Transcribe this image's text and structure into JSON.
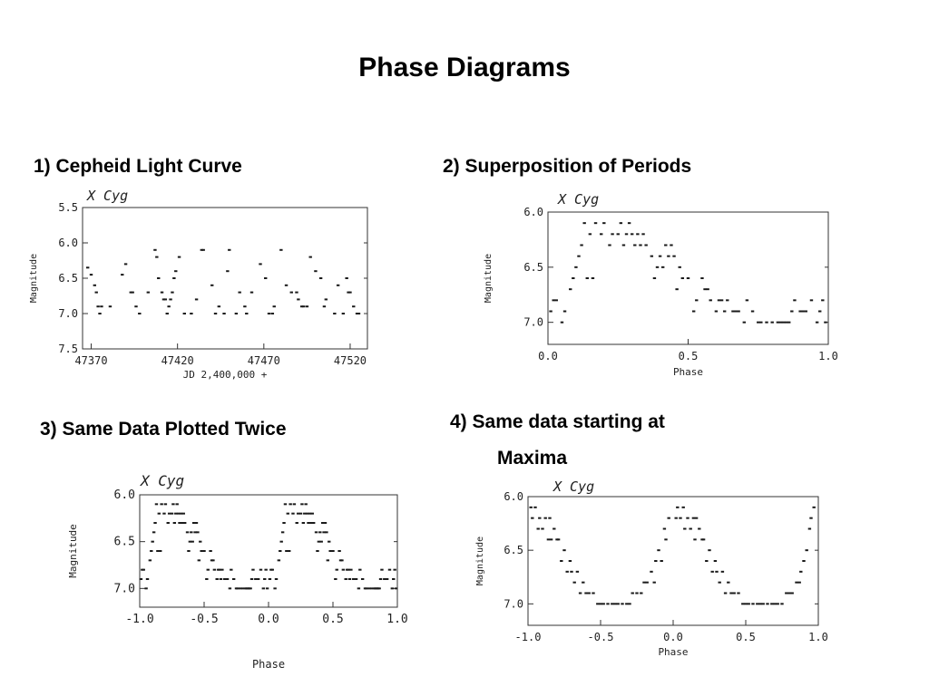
{
  "slide": {
    "title": "Phase Diagrams",
    "captions": [
      "1) Cepheid Light Curve",
      "2) Superposition of Periods",
      "3) Same Data Plotted Twice",
      "4) Same data starting at",
      "Maxima"
    ]
  },
  "chart_data": [
    {
      "type": "scatter",
      "title": "X  Cyg",
      "xlabel": "JD 2,400,000 +",
      "ylabel": "Magnitude",
      "xlim": [
        47365,
        47530
      ],
      "ylim": [
        7.5,
        5.5
      ],
      "y_inverted": true,
      "xticks": [
        47370,
        47420,
        47470,
        47520
      ],
      "xtick_labels": [
        "47370",
        "47420",
        "47470",
        "47520"
      ],
      "yticks": [
        5.5,
        6.0,
        6.5,
        7.0,
        7.5
      ],
      "ytick_labels": [
        "5.5",
        "6.0",
        "6.5",
        "7.0",
        "7.5"
      ],
      "x": [
        47368,
        47370,
        47372,
        47373,
        47374,
        47375,
        47376,
        47381,
        47388,
        47390,
        47393,
        47394,
        47396,
        47398,
        47403,
        47407,
        47408,
        47409,
        47411,
        47412,
        47413,
        47414,
        47415,
        47416,
        47417,
        47418,
        47419,
        47421,
        47424,
        47428,
        47431,
        47434,
        47435,
        47440,
        47442,
        47444,
        47447,
        47449,
        47450,
        47454,
        47456,
        47459,
        47460,
        47463,
        47468,
        47471,
        47473,
        47475,
        47476,
        47480,
        47483,
        47486,
        47489,
        47490,
        47492,
        47493,
        47495,
        47497,
        47500,
        47503,
        47505,
        47506,
        47511,
        47513,
        47516,
        47518,
        47519,
        47520,
        47522,
        47524,
        47525
      ],
      "y": [
        6.35,
        6.45,
        6.6,
        6.7,
        6.9,
        7.0,
        6.9,
        6.9,
        6.45,
        6.3,
        6.7,
        6.7,
        6.9,
        7.0,
        6.7,
        6.1,
        6.2,
        6.5,
        6.7,
        6.8,
        6.8,
        7.0,
        6.9,
        6.8,
        6.7,
        6.5,
        6.4,
        6.2,
        7.0,
        7.0,
        6.8,
        6.1,
        6.1,
        6.6,
        7.0,
        6.9,
        7.0,
        6.4,
        6.1,
        7.0,
        6.7,
        6.9,
        7.0,
        6.7,
        6.3,
        6.5,
        7.0,
        7.0,
        6.9,
        6.1,
        6.6,
        6.7,
        6.7,
        6.8,
        6.9,
        6.9,
        6.9,
        6.2,
        6.4,
        6.5,
        6.9,
        6.8,
        7.0,
        6.6,
        7.0,
        6.5,
        6.7,
        6.7,
        6.9,
        7.0,
        7.0
      ]
    },
    {
      "type": "scatter",
      "title": "X  Cyg",
      "xlabel": "Phase",
      "ylabel": "Magnitude",
      "xlim": [
        0.0,
        1.0
      ],
      "ylim": [
        7.2,
        6.0
      ],
      "y_inverted": true,
      "xticks": [
        0.0,
        0.5,
        1.0
      ],
      "xtick_labels": [
        "0.0",
        "0.5",
        "1.0"
      ],
      "yticks": [
        6.0,
        6.5,
        7.0
      ],
      "ytick_labels": [
        "6.0",
        "6.5",
        "7.0"
      ],
      "x": [
        0.01,
        0.02,
        0.03,
        0.05,
        0.06,
        0.08,
        0.09,
        0.1,
        0.11,
        0.12,
        0.13,
        0.14,
        0.15,
        0.16,
        0.17,
        0.19,
        0.2,
        0.22,
        0.23,
        0.25,
        0.26,
        0.27,
        0.28,
        0.29,
        0.3,
        0.31,
        0.32,
        0.33,
        0.34,
        0.35,
        0.37,
        0.38,
        0.39,
        0.4,
        0.41,
        0.42,
        0.43,
        0.44,
        0.45,
        0.46,
        0.47,
        0.48,
        0.5,
        0.52,
        0.53,
        0.55,
        0.56,
        0.57,
        0.58,
        0.6,
        0.61,
        0.62,
        0.63,
        0.64,
        0.66,
        0.67,
        0.68,
        0.7,
        0.71,
        0.73,
        0.75,
        0.76,
        0.78,
        0.8,
        0.82,
        0.83,
        0.84,
        0.85,
        0.86,
        0.87,
        0.88,
        0.9,
        0.91,
        0.92,
        0.94,
        0.96,
        0.97,
        0.98,
        0.99
      ],
      "y": [
        6.9,
        6.8,
        6.8,
        7.0,
        6.9,
        6.7,
        6.6,
        6.5,
        6.4,
        6.3,
        6.1,
        6.6,
        6.2,
        6.6,
        6.1,
        6.2,
        6.1,
        6.3,
        6.2,
        6.2,
        6.1,
        6.3,
        6.2,
        6.1,
        6.2,
        6.3,
        6.2,
        6.3,
        6.2,
        6.3,
        6.4,
        6.6,
        6.5,
        6.4,
        6.5,
        6.3,
        6.4,
        6.3,
        6.4,
        6.7,
        6.5,
        6.6,
        6.6,
        6.9,
        6.8,
        6.6,
        6.7,
        6.7,
        6.8,
        6.9,
        6.8,
        6.8,
        6.9,
        6.8,
        6.9,
        6.9,
        6.9,
        7.0,
        6.8,
        6.9,
        7.0,
        7.0,
        7.0,
        7.0,
        7.0,
        7.0,
        7.0,
        7.0,
        7.0,
        6.9,
        6.8,
        6.9,
        6.9,
        6.9,
        6.8,
        7.0,
        6.9,
        6.8,
        7.0
      ]
    },
    {
      "type": "scatter",
      "title": "X  Cyg",
      "xlabel": "Phase",
      "ylabel": "Magnitude",
      "xlim": [
        -1.0,
        1.0
      ],
      "ylim": [
        7.2,
        6.0
      ],
      "y_inverted": true,
      "xticks": [
        -1.0,
        -0.5,
        0.0,
        0.5,
        1.0
      ],
      "xtick_labels": [
        "-1.0",
        "-0.5",
        "0.0",
        "0.5",
        "1.0"
      ],
      "yticks": [
        6.0,
        6.5,
        7.0
      ],
      "ytick_labels": [
        "6.0",
        "6.5",
        "7.0"
      ],
      "x": [
        -0.99,
        -0.98,
        -0.97,
        -0.95,
        -0.94,
        -0.92,
        -0.91,
        -0.9,
        -0.89,
        -0.88,
        -0.87,
        -0.86,
        -0.85,
        -0.84,
        -0.83,
        -0.81,
        -0.8,
        -0.78,
        -0.77,
        -0.75,
        -0.74,
        -0.73,
        -0.72,
        -0.71,
        -0.7,
        -0.69,
        -0.68,
        -0.67,
        -0.66,
        -0.65,
        -0.63,
        -0.62,
        -0.61,
        -0.6,
        -0.59,
        -0.58,
        -0.57,
        -0.56,
        -0.55,
        -0.54,
        -0.53,
        -0.52,
        -0.5,
        -0.48,
        -0.47,
        -0.45,
        -0.44,
        -0.43,
        -0.42,
        -0.4,
        -0.39,
        -0.38,
        -0.37,
        -0.36,
        -0.34,
        -0.33,
        -0.32,
        -0.3,
        -0.29,
        -0.27,
        -0.25,
        -0.24,
        -0.22,
        -0.2,
        -0.18,
        -0.17,
        -0.16,
        -0.15,
        -0.14,
        -0.13,
        -0.12,
        -0.1,
        -0.09,
        -0.08,
        -0.06,
        -0.04,
        -0.03,
        -0.02,
        -0.01,
        0.01,
        0.02,
        0.03,
        0.05,
        0.06,
        0.08,
        0.09,
        0.1,
        0.11,
        0.12,
        0.13,
        0.14,
        0.15,
        0.16,
        0.17,
        0.19,
        0.2,
        0.22,
        0.23,
        0.25,
        0.26,
        0.27,
        0.28,
        0.29,
        0.3,
        0.31,
        0.32,
        0.33,
        0.34,
        0.35,
        0.37,
        0.38,
        0.39,
        0.4,
        0.41,
        0.42,
        0.43,
        0.44,
        0.45,
        0.46,
        0.47,
        0.48,
        0.5,
        0.52,
        0.53,
        0.55,
        0.56,
        0.57,
        0.58,
        0.6,
        0.61,
        0.62,
        0.63,
        0.64,
        0.66,
        0.67,
        0.68,
        0.7,
        0.71,
        0.73,
        0.75,
        0.76,
        0.78,
        0.8,
        0.82,
        0.83,
        0.84,
        0.85,
        0.86,
        0.87,
        0.88,
        0.9,
        0.91,
        0.92,
        0.94,
        0.96,
        0.97,
        0.98,
        0.99
      ],
      "y": [
        6.9,
        6.8,
        6.8,
        7.0,
        6.9,
        6.7,
        6.6,
        6.5,
        6.4,
        6.3,
        6.1,
        6.6,
        6.2,
        6.6,
        6.1,
        6.2,
        6.1,
        6.3,
        6.2,
        6.2,
        6.1,
        6.3,
        6.2,
        6.1,
        6.2,
        6.3,
        6.2,
        6.3,
        6.2,
        6.3,
        6.4,
        6.6,
        6.5,
        6.4,
        6.5,
        6.3,
        6.4,
        6.3,
        6.4,
        6.7,
        6.5,
        6.6,
        6.6,
        6.9,
        6.8,
        6.6,
        6.7,
        6.7,
        6.8,
        6.9,
        6.8,
        6.8,
        6.9,
        6.8,
        6.9,
        6.9,
        6.9,
        7.0,
        6.8,
        6.9,
        7.0,
        7.0,
        7.0,
        7.0,
        7.0,
        7.0,
        7.0,
        7.0,
        7.0,
        6.9,
        6.8,
        6.9,
        6.9,
        6.9,
        6.8,
        7.0,
        6.9,
        6.8,
        7.0,
        6.9,
        6.8,
        6.8,
        7.0,
        6.9,
        6.7,
        6.6,
        6.5,
        6.4,
        6.3,
        6.1,
        6.6,
        6.2,
        6.6,
        6.1,
        6.2,
        6.1,
        6.3,
        6.2,
        6.2,
        6.1,
        6.3,
        6.2,
        6.1,
        6.2,
        6.3,
        6.2,
        6.3,
        6.2,
        6.3,
        6.4,
        6.6,
        6.5,
        6.4,
        6.5,
        6.3,
        6.4,
        6.3,
        6.4,
        6.7,
        6.5,
        6.6,
        6.6,
        6.9,
        6.8,
        6.6,
        6.7,
        6.7,
        6.8,
        6.9,
        6.8,
        6.8,
        6.9,
        6.8,
        6.9,
        6.9,
        6.9,
        7.0,
        6.8,
        6.9,
        7.0,
        7.0,
        7.0,
        7.0,
        7.0,
        7.0,
        7.0,
        7.0,
        7.0,
        6.9,
        6.8,
        6.9,
        6.9,
        6.9,
        6.8,
        7.0,
        6.9,
        6.8,
        7.0
      ]
    },
    {
      "type": "scatter",
      "title": "X  Cyg",
      "xlabel": "Phase",
      "ylabel": "Magnitude",
      "xlim": [
        -1.0,
        1.0
      ],
      "ylim": [
        7.2,
        6.0
      ],
      "y_inverted": true,
      "xticks": [
        -1.0,
        -0.5,
        0.0,
        0.5,
        1.0
      ],
      "xtick_labels": [
        "-1.0",
        "-0.5",
        "0.0",
        "0.5",
        "1.0"
      ],
      "yticks": [
        6.0,
        6.5,
        7.0
      ],
      "ytick_labels": [
        "6.0",
        "6.5",
        "7.0"
      ],
      "x": [
        -0.98,
        -0.97,
        -0.95,
        -0.93,
        -0.92,
        -0.9,
        -0.88,
        -0.86,
        -0.85,
        -0.84,
        -0.82,
        -0.8,
        -0.79,
        -0.77,
        -0.75,
        -0.73,
        -0.71,
        -0.7,
        -0.68,
        -0.66,
        -0.64,
        -0.62,
        -0.6,
        -0.58,
        -0.55,
        -0.52,
        -0.5,
        -0.48,
        -0.45,
        -0.42,
        -0.4,
        -0.38,
        -0.35,
        -0.32,
        -0.3,
        -0.28,
        -0.25,
        -0.22,
        -0.2,
        -0.18,
        -0.15,
        -0.13,
        -0.12,
        -0.1,
        -0.08,
        -0.06,
        -0.05,
        -0.03,
        0.02,
        0.03,
        0.05,
        0.07,
        0.08,
        0.1,
        0.12,
        0.14,
        0.15,
        0.16,
        0.18,
        0.2,
        0.21,
        0.23,
        0.25,
        0.27,
        0.29,
        0.3,
        0.32,
        0.34,
        0.36,
        0.38,
        0.4,
        0.42,
        0.45,
        0.48,
        0.5,
        0.52,
        0.55,
        0.58,
        0.6,
        0.62,
        0.65,
        0.68,
        0.7,
        0.72,
        0.75,
        0.78,
        0.8,
        0.82,
        0.85,
        0.87,
        0.88,
        0.9,
        0.92,
        0.94,
        0.95,
        0.97
      ],
      "y": [
        6.1,
        6.2,
        6.1,
        6.3,
        6.2,
        6.3,
        6.2,
        6.4,
        6.2,
        6.4,
        6.3,
        6.4,
        6.4,
        6.6,
        6.5,
        6.7,
        6.6,
        6.7,
        6.8,
        6.7,
        6.9,
        6.8,
        6.9,
        6.9,
        6.9,
        7.0,
        7.0,
        7.0,
        7.0,
        7.0,
        7.0,
        7.0,
        7.0,
        7.0,
        7.0,
        6.9,
        6.9,
        6.9,
        6.8,
        6.8,
        6.7,
        6.8,
        6.6,
        6.5,
        6.6,
        6.3,
        6.4,
        6.2,
        6.2,
        6.1,
        6.2,
        6.1,
        6.3,
        6.2,
        6.3,
        6.2,
        6.4,
        6.2,
        6.3,
        6.4,
        6.4,
        6.6,
        6.5,
        6.7,
        6.6,
        6.7,
        6.8,
        6.7,
        6.9,
        6.8,
        6.9,
        6.9,
        6.9,
        7.0,
        7.0,
        7.0,
        7.0,
        7.0,
        7.0,
        7.0,
        7.0,
        7.0,
        7.0,
        7.0,
        7.0,
        6.9,
        6.9,
        6.9,
        6.8,
        6.8,
        6.7,
        6.6,
        6.5,
        6.3,
        6.2,
        6.1
      ]
    }
  ]
}
